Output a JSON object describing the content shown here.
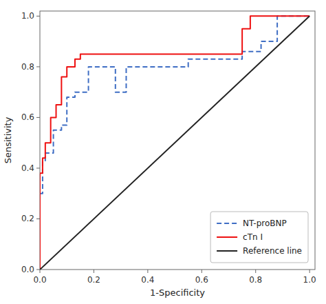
{
  "chart_data": {
    "type": "line",
    "xlabel": "1-Specificity",
    "ylabel": "Sensitivity",
    "series": [
      {
        "name": "NT-proBNP",
        "color": "#3F6EC4",
        "line_style": "dashed",
        "x": [
          0.0,
          0.0,
          0.01,
          0.01,
          0.02,
          0.02,
          0.03,
          0.03,
          0.05,
          0.05,
          0.08,
          0.08,
          0.1,
          0.1,
          0.13,
          0.13,
          0.15,
          0.15,
          0.18,
          0.18,
          0.25,
          0.25,
          0.28,
          0.28,
          0.32,
          0.32,
          0.45,
          0.45,
          0.5,
          0.5,
          0.55,
          0.55,
          0.62,
          0.62,
          0.68,
          0.68,
          0.75,
          0.75,
          0.82,
          0.82,
          0.88,
          0.88,
          1.0
        ],
        "values": [
          0.0,
          0.3,
          0.3,
          0.43,
          0.43,
          0.46,
          0.46,
          0.46,
          0.46,
          0.55,
          0.55,
          0.57,
          0.57,
          0.68,
          0.68,
          0.7,
          0.7,
          0.7,
          0.7,
          0.8,
          0.8,
          0.8,
          0.8,
          0.7,
          0.7,
          0.8,
          0.8,
          0.8,
          0.8,
          0.8,
          0.8,
          0.83,
          0.83,
          0.83,
          0.83,
          0.83,
          0.83,
          0.86,
          0.86,
          0.9,
          0.9,
          1.0,
          1.0
        ]
      },
      {
        "name": "cTn I",
        "color": "#EE1111",
        "line_style": "solid",
        "x": [
          0.0,
          0.0,
          0.01,
          0.01,
          0.02,
          0.02,
          0.04,
          0.04,
          0.06,
          0.06,
          0.08,
          0.08,
          0.1,
          0.1,
          0.13,
          0.13,
          0.15,
          0.15,
          0.18,
          0.18,
          0.75,
          0.75,
          0.78,
          0.78,
          1.0
        ],
        "values": [
          0.0,
          0.38,
          0.38,
          0.44,
          0.44,
          0.5,
          0.5,
          0.6,
          0.6,
          0.65,
          0.65,
          0.76,
          0.76,
          0.8,
          0.8,
          0.83,
          0.83,
          0.85,
          0.85,
          0.85,
          0.85,
          0.95,
          0.95,
          1.0,
          1.0
        ]
      },
      {
        "name": "Reference line",
        "color": "#222222",
        "line_style": "solid",
        "x": [
          0.0,
          1.0
        ],
        "values": [
          0.0,
          1.0
        ]
      }
    ],
    "xlim": [
      0.0,
      1.02
    ],
    "ylim": [
      0.0,
      1.02
    ],
    "xticks": [
      {
        "value": 0.0,
        "label": "0.0"
      },
      0.2,
      0.4,
      0.6,
      0.8,
      {
        "value": 1.0,
        "label": "1.0"
      }
    ],
    "yticks": [
      {
        "value": 0.0,
        "label": "0.0"
      },
      0.2,
      0.4,
      0.6,
      0.8,
      {
        "value": 1.0,
        "label": "1.0"
      }
    ],
    "grid": false,
    "legend": "lower right"
  }
}
